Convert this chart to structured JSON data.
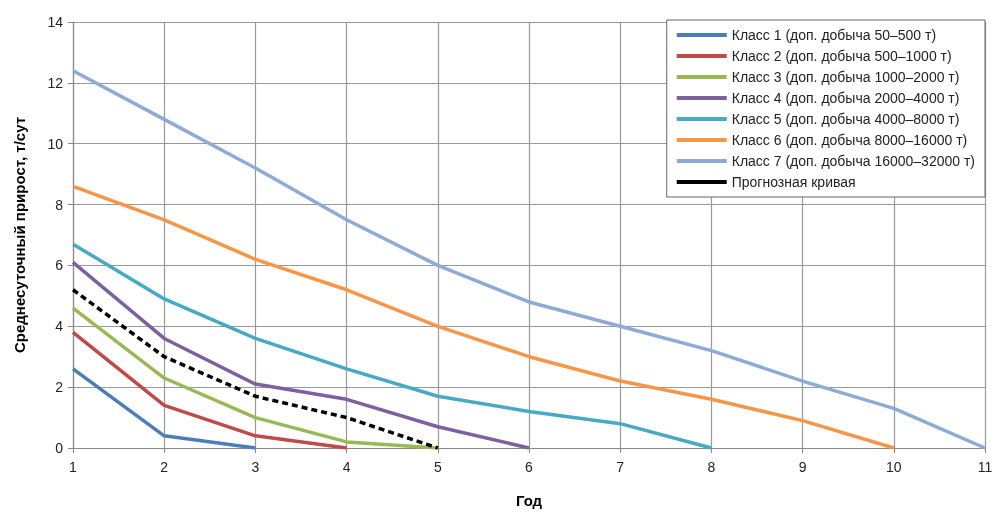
{
  "chart_data": {
    "type": "line",
    "xlabel": "Год",
    "ylabel": "Среднесуточный прирост, т/сут",
    "x": [
      1,
      2,
      3,
      4,
      5,
      6,
      7,
      8,
      9,
      10,
      11
    ],
    "series": [
      {
        "name": "Класс 1 (доп. добыча 50–500 т)",
        "color": "#4a7ebb",
        "values": [
          2.6,
          0.4,
          0,
          null,
          null,
          null,
          null,
          null,
          null,
          null,
          null
        ]
      },
      {
        "name": "Класс 2 (доп. добыча 500–1000 т)",
        "color": "#be4b48",
        "values": [
          3.8,
          1.4,
          0.4,
          0,
          null,
          null,
          null,
          null,
          null,
          null,
          null
        ]
      },
      {
        "name": "Класс 3 (доп. добыча 1000–2000 т)",
        "color": "#98b954",
        "values": [
          4.6,
          2.3,
          1.0,
          0.2,
          0,
          null,
          null,
          null,
          null,
          null,
          null
        ]
      },
      {
        "name": "Класс 4 (доп. добыча 2000–4000 т)",
        "color": "#7d60a0",
        "values": [
          6.1,
          3.6,
          2.1,
          1.6,
          0.7,
          0,
          null,
          null,
          null,
          null,
          null
        ]
      },
      {
        "name": "Класс 5 (доп. добыча 4000–8000 т)",
        "color": "#46aac5",
        "values": [
          6.7,
          4.9,
          3.6,
          2.6,
          1.7,
          1.2,
          0.8,
          0,
          null,
          null,
          null
        ]
      },
      {
        "name": "Класс 6 (доп. добыча 8000–16000 т)",
        "color": "#f79646",
        "values": [
          8.6,
          7.5,
          6.2,
          5.2,
          4.0,
          3.0,
          2.2,
          1.6,
          0.9,
          0,
          null
        ]
      },
      {
        "name": "Класс 7 (доп. добыча 16000–32000 т)",
        "color": "#8eaad6",
        "values": [
          12.4,
          10.8,
          9.2,
          7.5,
          6.0,
          4.8,
          4.0,
          3.2,
          2.2,
          1.3,
          0
        ]
      },
      {
        "name": "Прогнозная кривая",
        "color": "#000000",
        "line_style": "dashed",
        "values": [
          5.2,
          3.0,
          1.7,
          1.0,
          0,
          null,
          null,
          null,
          null,
          null,
          null
        ]
      }
    ],
    "xlim": [
      1,
      11
    ],
    "xticks": [
      1,
      2,
      3,
      4,
      5,
      6,
      7,
      8,
      9,
      10,
      11
    ],
    "ylim": [
      0,
      14
    ],
    "yticks": [
      0,
      2,
      4,
      6,
      8,
      10,
      12,
      14
    ],
    "grid": true,
    "legend": "top right",
    "marker": "none",
    "line_style": "solid"
  }
}
